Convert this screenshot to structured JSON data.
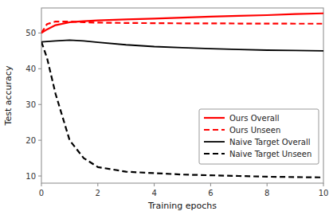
{
  "chart_data": {
    "type": "line",
    "x_label": "Training epochs",
    "y_label": "Test accuracy",
    "x": [
      0,
      0.2,
      0.5,
      1,
      1.5,
      2,
      3,
      4,
      5,
      6,
      7,
      8,
      9,
      10
    ],
    "xlim": [
      0,
      10
    ],
    "ylim": [
      8,
      57
    ],
    "xticks": [
      0,
      2,
      4,
      6,
      8,
      10
    ],
    "yticks": [
      10,
      20,
      30,
      40,
      50
    ],
    "grid": false,
    "legend": "lower right",
    "series": [
      {
        "name": "Ours Overall",
        "color": "red",
        "line_style": "solid",
        "values": [
          50.0,
          51.0,
          52.2,
          53.0,
          53.3,
          53.5,
          53.8,
          54.0,
          54.3,
          54.6,
          54.8,
          55.0,
          55.3,
          55.5
        ]
      },
      {
        "name": "Ours Unseen",
        "color": "red",
        "line_style": "dashed",
        "values": [
          50.0,
          52.5,
          53.2,
          53.2,
          53.0,
          52.9,
          52.8,
          52.75,
          52.7,
          52.7,
          52.65,
          52.65,
          52.6,
          52.6
        ]
      },
      {
        "name": "Naive Target Overall",
        "color": "black",
        "line_style": "solid",
        "values": [
          47.5,
          47.6,
          47.8,
          48.0,
          47.8,
          47.4,
          46.7,
          46.2,
          45.9,
          45.6,
          45.4,
          45.2,
          45.1,
          45.0
        ]
      },
      {
        "name": "Naive Target Unseen",
        "color": "black",
        "line_style": "dashed",
        "values": [
          47.5,
          43.0,
          33.0,
          20.0,
          15.0,
          12.5,
          11.2,
          10.8,
          10.4,
          10.2,
          10.0,
          9.8,
          9.7,
          9.6
        ]
      }
    ]
  }
}
